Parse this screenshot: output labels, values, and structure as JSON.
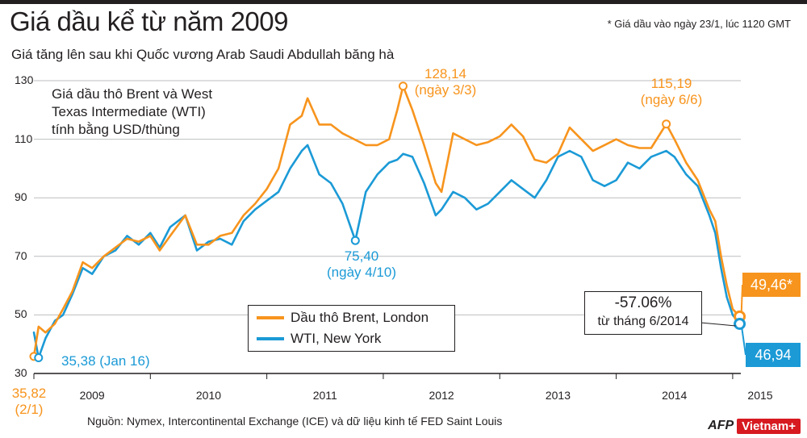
{
  "header": {
    "title": "Giá dầu kể từ năm 2009",
    "subtitle": "Giá tăng lên sau khi Quốc vương Arab Saudi Abdullah băng hà",
    "footnote": "* Giá dầu vào ngày 23/1, lúc 1120 GMT"
  },
  "description": {
    "line1": "Giá dầu thô Brent và West",
    "line2": "Texas Intermediate (WTI)",
    "line3": "tính bằng USD/thùng"
  },
  "legend": {
    "brent": "Dầu thô Brent, London",
    "wti": "WTI, New York"
  },
  "annotations": {
    "start_brent_value": "35,82",
    "start_brent_date": "(2/1)",
    "wti_low_label": "35,38 (Jan 16)",
    "wti_dip_value": "75,40",
    "wti_dip_date": "(ngày 4/10)",
    "brent_peak_value": "128,14",
    "brent_peak_date": "(ngày 3/3)",
    "brent_2014_value": "115,19",
    "brent_2014_date": "(ngày 6/6)",
    "change_pct": "-57.06%",
    "change_since": "từ tháng 6/2014",
    "brent_end": "49,46*",
    "wti_end": "46,94"
  },
  "source": "Nguồn: Nymex, Intercontinental Exchange (ICE) và dữ liệu kinh tế FED Saint Louis",
  "logo": {
    "afp": "AFP",
    "vn": "Vietnam+"
  },
  "colors": {
    "brent": "#f7941d",
    "wti": "#1b9ad6",
    "grid": "#bcbec0",
    "text": "#231f20"
  },
  "chart_data": {
    "type": "line",
    "title": "Giá dầu kể từ năm 2009",
    "ylabel": "USD/thùng",
    "ylim": [
      30,
      130
    ],
    "xlim": [
      2009.0,
      2015.07
    ],
    "y_ticks": [
      30,
      50,
      70,
      90,
      110,
      130
    ],
    "y_tick_labels": [
      "30",
      "50",
      "70",
      "90",
      "110",
      "130"
    ],
    "x_ticks": [
      2009,
      2010,
      2011,
      2012,
      2013,
      2014,
      2015
    ],
    "x_tick_labels": [
      "2009",
      "2010",
      "2011",
      "2012",
      "2013",
      "2014",
      "2015"
    ],
    "grid": "horizontal",
    "series": [
      {
        "name": "Dầu thô Brent, London",
        "x": [
          2009.0,
          2009.04,
          2009.1,
          2009.18,
          2009.25,
          2009.33,
          2009.42,
          2009.5,
          2009.6,
          2009.7,
          2009.8,
          2009.9,
          2010.0,
          2010.08,
          2010.17,
          2010.3,
          2010.4,
          2010.5,
          2010.6,
          2010.7,
          2010.8,
          2010.9,
          2011.0,
          2011.1,
          2011.2,
          2011.3,
          2011.35,
          2011.45,
          2011.55,
          2011.65,
          2011.75,
          2011.85,
          2011.95,
          2012.05,
          2012.12,
          2012.17,
          2012.25,
          2012.35,
          2012.45,
          2012.5,
          2012.6,
          2012.7,
          2012.8,
          2012.9,
          2013.0,
          2013.1,
          2013.2,
          2013.3,
          2013.4,
          2013.5,
          2013.6,
          2013.7,
          2013.8,
          2013.9,
          2014.0,
          2014.1,
          2014.2,
          2014.3,
          2014.43,
          2014.5,
          2014.6,
          2014.7,
          2014.8,
          2014.85,
          2014.9,
          2014.95,
          2015.0,
          2015.06
        ],
        "values": [
          35.82,
          46,
          44,
          47,
          52,
          58,
          68,
          66,
          70,
          73,
          76,
          75,
          77,
          72,
          77,
          84,
          74,
          74,
          77,
          78,
          84,
          88,
          93,
          100,
          115,
          118,
          124,
          115,
          115,
          112,
          110,
          108,
          108,
          110,
          120,
          128.14,
          120,
          108,
          95,
          92,
          112,
          110,
          108,
          109,
          111,
          115,
          111,
          103,
          102,
          105,
          114,
          110,
          106,
          108,
          110,
          108,
          107,
          107,
          115.19,
          110,
          102,
          96,
          86,
          82,
          70,
          60,
          52,
          49.46
        ]
      },
      {
        "name": "WTI, New York",
        "x": [
          2009.0,
          2009.04,
          2009.1,
          2009.18,
          2009.25,
          2009.33,
          2009.42,
          2009.5,
          2009.6,
          2009.7,
          2009.8,
          2009.9,
          2010.0,
          2010.08,
          2010.17,
          2010.3,
          2010.4,
          2010.5,
          2010.6,
          2010.7,
          2010.8,
          2010.9,
          2011.0,
          2011.1,
          2011.2,
          2011.3,
          2011.35,
          2011.45,
          2011.55,
          2011.65,
          2011.76,
          2011.85,
          2011.95,
          2012.05,
          2012.12,
          2012.17,
          2012.25,
          2012.35,
          2012.45,
          2012.5,
          2012.6,
          2012.7,
          2012.8,
          2012.9,
          2013.0,
          2013.1,
          2013.2,
          2013.3,
          2013.4,
          2013.5,
          2013.6,
          2013.7,
          2013.8,
          2013.9,
          2014.0,
          2014.1,
          2014.2,
          2014.3,
          2014.43,
          2014.5,
          2014.6,
          2014.7,
          2014.8,
          2014.85,
          2014.9,
          2014.95,
          2015.0,
          2015.06
        ],
        "values": [
          44,
          35.38,
          42,
          48,
          50,
          57,
          66,
          64,
          70,
          72,
          77,
          74,
          78,
          73,
          80,
          84,
          72,
          75,
          76,
          74,
          82,
          86,
          89,
          92,
          100,
          106,
          108,
          98,
          95,
          88,
          75.4,
          92,
          98,
          102,
          103,
          105,
          104,
          95,
          84,
          86,
          92,
          90,
          86,
          88,
          92,
          96,
          93,
          90,
          96,
          104,
          106,
          104,
          96,
          94,
          96,
          102,
          100,
          104,
          106,
          104,
          98,
          94,
          84,
          78,
          66,
          56,
          50,
          46.94
        ]
      }
    ]
  }
}
